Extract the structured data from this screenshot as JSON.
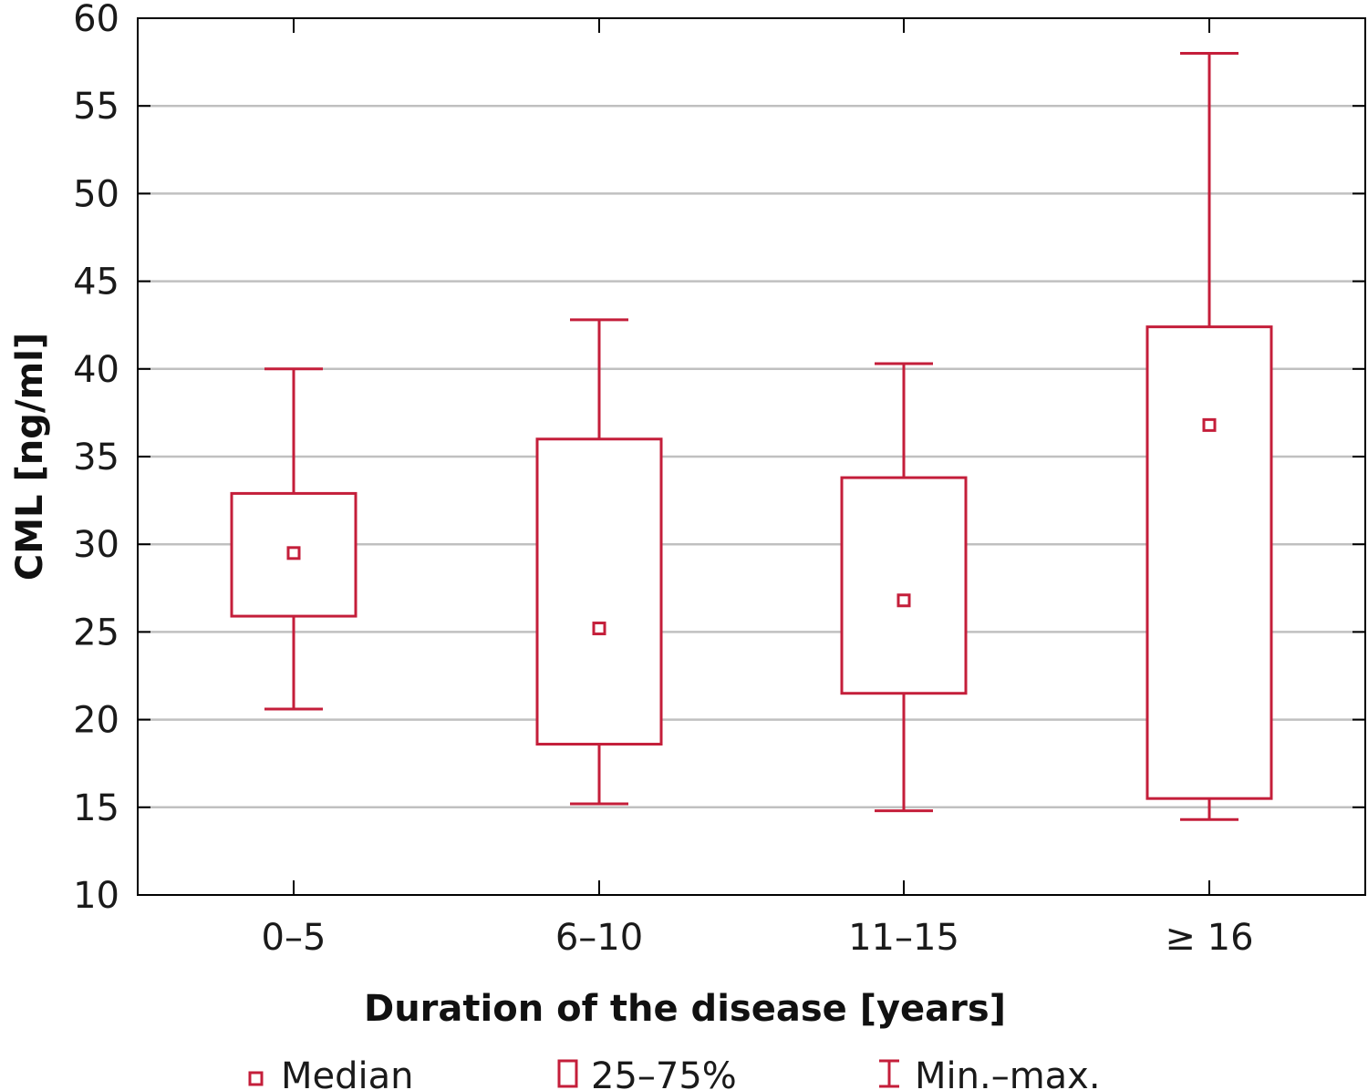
{
  "chart_data": {
    "type": "box",
    "xlabel": "Duration of the disease [years]",
    "ylabel": "CML [ng/ml]",
    "ylim": [
      10,
      60
    ],
    "yticks": [
      10,
      15,
      20,
      25,
      30,
      35,
      40,
      45,
      50,
      55,
      60
    ],
    "grid": "horizontal",
    "categories": [
      "0–5",
      "6–10",
      "11–15",
      "≥ 16"
    ],
    "boxes": [
      {
        "category": "0–5",
        "min": 20.6,
        "q1": 25.9,
        "median": 29.5,
        "q3": 32.9,
        "max": 40.0
      },
      {
        "category": "6–10",
        "min": 15.2,
        "q1": 18.6,
        "median": 25.2,
        "q3": 36.0,
        "max": 42.8
      },
      {
        "category": "11–15",
        "min": 14.8,
        "q1": 21.5,
        "median": 26.8,
        "q3": 33.8,
        "max": 40.3
      },
      {
        "category": "≥ 16",
        "min": 14.3,
        "q1": 15.5,
        "median": 36.8,
        "q3": 42.4,
        "max": 58.0
      }
    ],
    "legend": {
      "position": "bottom",
      "items": [
        {
          "symbol": "median-marker",
          "label": "Median"
        },
        {
          "symbol": "box",
          "label": "25–75%"
        },
        {
          "symbol": "whisker",
          "label": "Min.–max."
        }
      ]
    },
    "colors": {
      "series": "#c41e3a",
      "grid": "#c0c0c0",
      "axis": "#000000"
    }
  }
}
